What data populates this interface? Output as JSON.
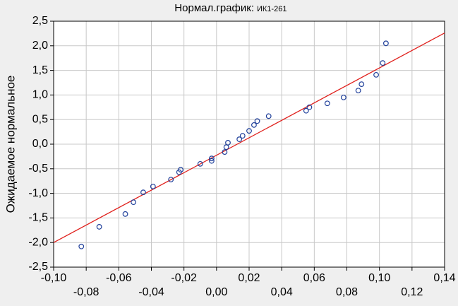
{
  "chart_data": {
    "type": "scatter",
    "title": "Нормал.график:",
    "variable": "ИК1-261",
    "y_label": "Ожидаемое нормальное",
    "point_color": "#1f3f9a",
    "line_color": "#e0201c",
    "grid": true,
    "x": [
      -0.083,
      -0.072,
      -0.056,
      -0.051,
      -0.045,
      -0.039,
      -0.028,
      -0.023,
      -0.022,
      -0.01,
      -0.003,
      -0.003,
      0.005,
      0.006,
      0.007,
      0.014,
      0.016,
      0.02,
      0.023,
      0.025,
      0.032,
      0.055,
      0.057,
      0.068,
      0.078,
      0.087,
      0.089,
      0.098,
      0.102,
      0.104
    ],
    "values": [
      -2.08,
      -1.68,
      -1.42,
      -1.18,
      -0.98,
      -0.86,
      -0.72,
      -0.57,
      -0.52,
      -0.4,
      -0.34,
      -0.29,
      -0.16,
      -0.06,
      0.03,
      0.1,
      0.17,
      0.27,
      0.39,
      0.47,
      0.57,
      0.68,
      0.75,
      0.83,
      0.95,
      1.09,
      1.22,
      1.41,
      1.65,
      2.05
    ],
    "line": {
      "x": [
        -0.1,
        0.14
      ],
      "y": [
        -2.0,
        2.26
      ]
    },
    "xlim": [
      -0.1,
      0.14
    ],
    "ylim": [
      -2.5,
      2.5
    ],
    "xticks": [
      {
        "value": -0.1,
        "label": "-0,10"
      },
      {
        "value": -0.08,
        "label": "-0,08"
      },
      {
        "value": -0.06,
        "label": "-0,06"
      },
      {
        "value": -0.04,
        "label": "-0,04"
      },
      {
        "value": -0.02,
        "label": "-0,02"
      },
      {
        "value": 0,
        "label": "0,00"
      },
      {
        "value": 0.02,
        "label": "0,02"
      },
      {
        "value": 0.04,
        "label": "0,04"
      },
      {
        "value": 0.06,
        "label": "0,06"
      },
      {
        "value": 0.08,
        "label": "0,08"
      },
      {
        "value": 0.1,
        "label": "0,10"
      },
      {
        "value": 0.12,
        "label": "0,12"
      },
      {
        "value": 0.14,
        "label": "0,14"
      }
    ],
    "yticks": [
      {
        "value": 2.5,
        "label": "2,5"
      },
      {
        "value": 2.0,
        "label": "2,0"
      },
      {
        "value": 1.5,
        "label": "1,5"
      },
      {
        "value": 1.0,
        "label": "1,0"
      },
      {
        "value": 0.5,
        "label": "0,5"
      },
      {
        "value": 0,
        "label": "0,0"
      },
      {
        "value": -0.5,
        "label": "-0,5"
      },
      {
        "value": -1.0,
        "label": "-1,0"
      },
      {
        "value": -1.5,
        "label": "-1,5"
      },
      {
        "value": -2.0,
        "label": "-2,0"
      },
      {
        "value": -2.5,
        "label": "-2,5"
      }
    ]
  }
}
